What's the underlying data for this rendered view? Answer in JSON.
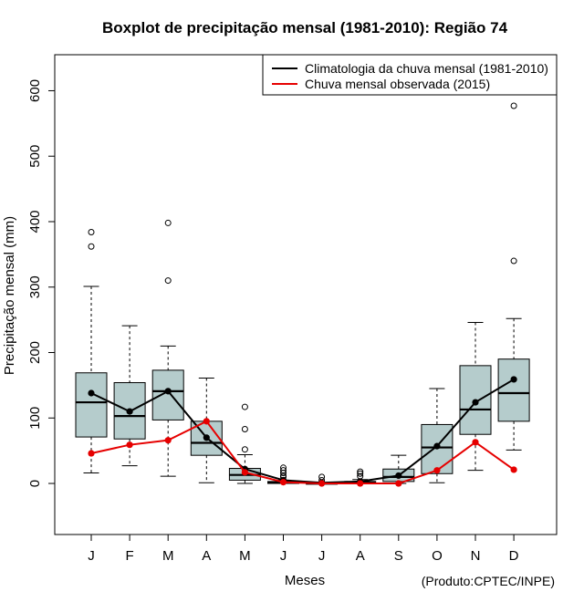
{
  "chart_data": {
    "type": "boxplot",
    "title": "Boxplot de precipitação mensal (1981-2010): Região 74",
    "xlabel": "Meses",
    "ylabel": "Precipitação mensal (mm)",
    "credit": "(Produto:CPTEC/INPE)",
    "categories": [
      "J",
      "F",
      "M",
      "A",
      "M",
      "J",
      "J",
      "A",
      "S",
      "O",
      "N",
      "D"
    ],
    "ylim": [
      -78,
      655
    ],
    "yticks": [
      0,
      100,
      200,
      300,
      400,
      500,
      600
    ],
    "box_color": "#b5cccc",
    "boxes": [
      {
        "whisker_low": 16,
        "q1": 71,
        "median": 124,
        "q3": 169,
        "whisker_high": 301,
        "outliers": [
          362,
          384
        ]
      },
      {
        "whisker_low": 27,
        "q1": 68,
        "median": 103,
        "q3": 154,
        "whisker_high": 241,
        "outliers": []
      },
      {
        "whisker_low": 11,
        "q1": 97,
        "median": 141,
        "q3": 173,
        "whisker_high": 210,
        "outliers": [
          310,
          398
        ]
      },
      {
        "whisker_low": 1,
        "q1": 43,
        "median": 62,
        "q3": 95,
        "whisker_high": 161,
        "outliers": []
      },
      {
        "whisker_low": 0,
        "q1": 5,
        "median": 13,
        "q3": 23,
        "whisker_high": 44,
        "outliers": [
          52,
          83,
          117
        ]
      },
      {
        "whisker_low": 0,
        "q1": 0,
        "median": 2,
        "q3": 3,
        "whisker_high": 5,
        "outliers": [
          10,
          12,
          16,
          20,
          24
        ]
      },
      {
        "whisker_low": 0,
        "q1": 0,
        "median": 0,
        "q3": 0,
        "whisker_high": 1,
        "outliers": [
          5,
          10
        ]
      },
      {
        "whisker_low": 0,
        "q1": 0,
        "median": 2,
        "q3": 3,
        "whisker_high": 6,
        "outliers": [
          11,
          15,
          18
        ]
      },
      {
        "whisker_low": 0,
        "q1": 3,
        "median": 10,
        "q3": 22,
        "whisker_high": 43,
        "outliers": []
      },
      {
        "whisker_low": 1,
        "q1": 15,
        "median": 55,
        "q3": 90,
        "whisker_high": 145,
        "outliers": []
      },
      {
        "whisker_low": 20,
        "q1": 75,
        "median": 113,
        "q3": 180,
        "whisker_high": 246,
        "outliers": []
      },
      {
        "whisker_low": 51,
        "q1": 95,
        "median": 138,
        "q3": 190,
        "whisker_high": 252,
        "outliers": [
          340,
          577
        ]
      }
    ],
    "series": [
      {
        "name": "Climatologia da chuva mensal (1981-2010)",
        "color": "#000000",
        "values": [
          138,
          110,
          141,
          70,
          22,
          5,
          1,
          3,
          12,
          57,
          124,
          159
        ]
      },
      {
        "name": "Chuva mensal observada (2015)",
        "color": "#e60000",
        "values": [
          46,
          59,
          66,
          95,
          17,
          2,
          0,
          0,
          0,
          20,
          63,
          21
        ]
      }
    ],
    "legend_position": "top-right"
  }
}
